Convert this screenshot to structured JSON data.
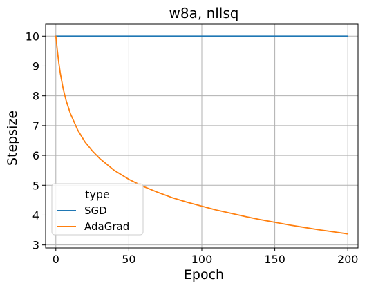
{
  "chart_data": {
    "type": "line",
    "title": "w8a, nllsq",
    "xlabel": "Epoch",
    "ylabel": "Stepsize",
    "xlim": [
      -7,
      207
    ],
    "ylim": [
      2.9,
      10.4
    ],
    "xticks": [
      0,
      50,
      100,
      150,
      200
    ],
    "yticks": [
      3,
      4,
      5,
      6,
      7,
      8,
      9,
      10
    ],
    "grid": true,
    "legend": {
      "title": "type",
      "placement": "lower-left"
    },
    "series": [
      {
        "name": "SGD",
        "color": "#1f77b4",
        "x": [
          0,
          200
        ],
        "y": [
          10,
          10
        ]
      },
      {
        "name": "AdaGrad",
        "color": "#ff7f0e",
        "x": [
          0,
          1,
          2,
          3,
          5,
          7,
          10,
          15,
          20,
          25,
          30,
          40,
          50,
          60,
          70,
          80,
          90,
          100,
          110,
          120,
          130,
          140,
          150,
          160,
          170,
          180,
          190,
          200
        ],
        "y": [
          10.0,
          9.53,
          9.12,
          8.77,
          8.24,
          7.85,
          7.4,
          6.85,
          6.45,
          6.15,
          5.9,
          5.5,
          5.2,
          4.96,
          4.76,
          4.58,
          4.43,
          4.3,
          4.17,
          4.06,
          3.95,
          3.85,
          3.76,
          3.67,
          3.59,
          3.51,
          3.44,
          3.37
        ]
      }
    ]
  }
}
